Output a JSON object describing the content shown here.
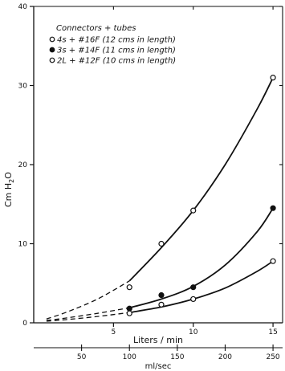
{
  "chart_data": {
    "type": "scatter",
    "title": "",
    "legend_title": "Connectors + tubes",
    "legend_position": "top-left",
    "grid": false,
    "xlabel": "Liters / min",
    "secondary_xlabel": "ml/sec",
    "ylabel": "Cm H2O",
    "ylabel_main": "Cm",
    "ylabel_sub": "H",
    "ylabel_subscript": "2",
    "ylabel_tail": "O",
    "xlim": [
      0,
      15.6
    ],
    "ylim": [
      0,
      40
    ],
    "x_ticks": [
      {
        "value": 5,
        "label": "5"
      },
      {
        "value": 10,
        "label": "10"
      },
      {
        "value": 15,
        "label": "15"
      }
    ],
    "y_ticks": [
      {
        "value": 0,
        "label": "0"
      },
      {
        "value": 10,
        "label": "10"
      },
      {
        "value": 20,
        "label": "20"
      },
      {
        "value": 30,
        "label": "30"
      },
      {
        "value": 40,
        "label": "40"
      }
    ],
    "secondary_ticks": [
      {
        "value": 50,
        "label": "50"
      },
      {
        "value": 100,
        "label": "100"
      },
      {
        "value": 150,
        "label": "150"
      },
      {
        "value": 200,
        "label": "200"
      },
      {
        "value": 250,
        "label": "250"
      }
    ],
    "series": [
      {
        "name": "4s + #16F (12 cms in length)",
        "marker": "open-circle",
        "x": [
          6,
          8,
          10,
          15
        ],
        "y": [
          4.5,
          10,
          14.2,
          31
        ],
        "curve": [
          [
            0.8,
            0.5
          ],
          [
            2,
            1.3
          ],
          [
            4,
            3
          ],
          [
            6,
            5.3
          ],
          [
            8,
            9.5
          ],
          [
            10,
            14.2
          ],
          [
            12,
            20
          ],
          [
            14,
            27
          ],
          [
            15,
            31
          ]
        ]
      },
      {
        "name": "3s + #14F (11 cms in length)",
        "marker": "filled-circle",
        "x": [
          6,
          8,
          10,
          15
        ],
        "y": [
          1.8,
          3.5,
          4.5,
          14.5
        ],
        "curve": [
          [
            0.8,
            0.3
          ],
          [
            2,
            0.6
          ],
          [
            4,
            1.2
          ],
          [
            6,
            1.9
          ],
          [
            8,
            3
          ],
          [
            10,
            4.6
          ],
          [
            12,
            7.3
          ],
          [
            14,
            11.5
          ],
          [
            15,
            14.5
          ]
        ]
      },
      {
        "name": "2L + #12F (10 cms in length)",
        "marker": "open-circle",
        "x": [
          6,
          8,
          10,
          15
        ],
        "y": [
          1.2,
          2.3,
          3,
          7.8
        ],
        "curve": [
          [
            0.8,
            0.2
          ],
          [
            2,
            0.4
          ],
          [
            4,
            0.8
          ],
          [
            6,
            1.3
          ],
          [
            8,
            2
          ],
          [
            10,
            3
          ],
          [
            12,
            4.4
          ],
          [
            14,
            6.5
          ],
          [
            15,
            7.8
          ]
        ]
      }
    ]
  }
}
